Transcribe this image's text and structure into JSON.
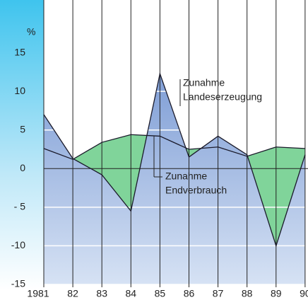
{
  "chart_data": {
    "type": "area-line",
    "y_unit_label": "%",
    "x": [
      1981,
      1982,
      1983,
      1984,
      1985,
      1986,
      1987,
      1988,
      1989,
      1990
    ],
    "series": [
      {
        "name": "Zunahme Landeserzeugung",
        "name_lines": [
          "Zunahme",
          "Landeserzeugung"
        ],
        "color": "#8aa6d8",
        "values": [
          7,
          1.3,
          -0.8,
          -5.5,
          12.3,
          1.5,
          4.2,
          1.8,
          -10,
          1.8
        ]
      },
      {
        "name": "Zunahme Endverbrauch",
        "name_lines": [
          "Zunahme",
          "Endverbrauch"
        ],
        "color": "#80d49a",
        "values": [
          2.6,
          1.2,
          3.4,
          4.4,
          4.2,
          2.5,
          2.8,
          1.6,
          2.8,
          2.6
        ]
      }
    ],
    "xlim": [
      1981,
      1990.1
    ],
    "ylim": [
      -15,
      20
    ],
    "xticks": [
      1981,
      {
        "value": 1982,
        "label": "82"
      },
      {
        "value": 1983,
        "label": "83"
      },
      {
        "value": 1984,
        "label": "84"
      },
      {
        "value": 1985,
        "label": "85"
      },
      {
        "value": 1986,
        "label": "86"
      },
      {
        "value": 1987,
        "label": "87"
      },
      {
        "value": 1988,
        "label": "88"
      },
      {
        "value": 1989,
        "label": "89"
      },
      {
        "value": 1990,
        "label": "90"
      }
    ],
    "yticks": [
      -15,
      -10,
      {
        "value": -5,
        "label": "- 5"
      },
      0,
      5,
      10,
      15
    ],
    "grid": true
  }
}
